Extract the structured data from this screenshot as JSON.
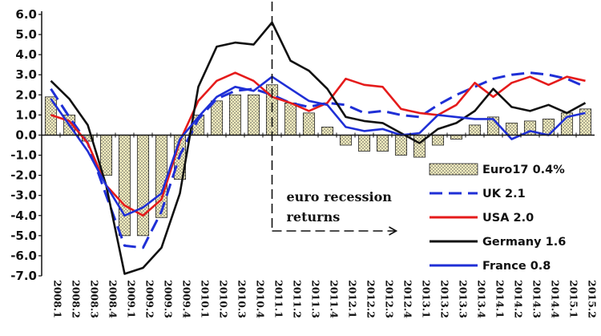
{
  "chart_data": {
    "type": "bar+line",
    "title": "",
    "xlabel": "",
    "ylabel": "",
    "ylim": [
      -7.0,
      6.0
    ],
    "yticks": [
      "6.0",
      "5.0",
      "4.0",
      "3.0",
      "2.0",
      "1.0",
      "0.0",
      "-1.0",
      "-2.0",
      "-3.0",
      "-4.0",
      "-5.0",
      "-6.0",
      "-7.0"
    ],
    "ytick_values": [
      6,
      5,
      4,
      3,
      2,
      1,
      0,
      -1,
      -2,
      -3,
      -4,
      -5,
      -6,
      -7
    ],
    "categories": [
      "2008.1",
      "2008.2",
      "2008.3",
      "2008.4",
      "2009.1",
      "2009.2",
      "2009.3",
      "2009.4",
      "2010.1",
      "2010.2",
      "2010.3",
      "2010.4",
      "2011.1",
      "2011.2",
      "2011.3",
      "2011.4",
      "2012.1",
      "2012.2",
      "2012.3",
      "2012.4",
      "2013.1",
      "2013.2",
      "2013.3",
      "2013.4",
      "2014.1",
      "2014.2",
      "2014.3",
      "2014.4",
      "2015.1",
      "2015.2"
    ],
    "x_tick_labels": [
      "2008.1",
      "2008.2",
      "2008.3",
      "2008.4",
      "2009.1",
      "2009.2",
      "2009.3",
      "2009.4",
      "2010.1",
      "2010.2",
      "2010.3",
      "2010.4",
      "2011.1",
      "2011.2",
      "2011.3",
      "2011.4",
      "2012.1",
      "2012.2",
      "2012.3",
      "2012.4",
      "2013.1",
      "2013.2",
      "2013.3",
      "2013.4",
      "2014.1",
      "2014.2",
      "2014.3",
      "2014.4",
      "2015.1",
      "2015.2"
    ],
    "bars": {
      "name": "Euro17  0.4%",
      "color": "#f3eec0",
      "values": [
        1.9,
        1.0,
        -0.3,
        -2.0,
        -5.0,
        -5.0,
        -4.1,
        -2.2,
        1.0,
        1.7,
        2.0,
        2.0,
        2.5,
        1.6,
        1.1,
        0.4,
        -0.5,
        -0.8,
        -0.8,
        -1.0,
        -1.1,
        -0.5,
        -0.2,
        0.5,
        0.9,
        0.6,
        0.7,
        0.8,
        1.1,
        1.3
      ]
    },
    "series": [
      {
        "name": "UK 2.1",
        "color": "#1f2fd6",
        "dashed": true,
        "values": [
          2.3,
          0.9,
          -0.4,
          -3.0,
          -5.5,
          -5.6,
          -3.8,
          -1.0,
          0.8,
          1.8,
          2.2,
          2.3,
          2.0,
          1.6,
          1.4,
          1.6,
          1.5,
          1.1,
          1.2,
          1.0,
          0.9,
          1.5,
          2.0,
          2.4,
          2.8,
          3.0,
          3.1,
          3.0,
          2.8,
          2.4
        ]
      },
      {
        "name": "USA 2.0",
        "color": "#e51b1b",
        "dashed": false,
        "values": [
          1.0,
          0.7,
          -0.4,
          -2.5,
          -3.5,
          -4.0,
          -3.2,
          -0.3,
          1.7,
          2.7,
          3.1,
          2.7,
          1.9,
          1.6,
          1.2,
          1.6,
          2.8,
          2.5,
          2.4,
          1.3,
          1.1,
          1.0,
          1.5,
          2.6,
          1.9,
          2.6,
          2.9,
          2.5,
          2.9,
          2.7
        ]
      },
      {
        "name": "Germany 1.6",
        "color": "#111111",
        "dashed": false,
        "values": [
          2.7,
          1.8,
          0.5,
          -2.5,
          -6.9,
          -6.6,
          -5.6,
          -2.9,
          2.4,
          4.4,
          4.6,
          4.5,
          5.6,
          3.7,
          3.2,
          2.3,
          0.9,
          0.7,
          0.6,
          0.1,
          -0.4,
          0.3,
          0.6,
          1.2,
          2.3,
          1.4,
          1.2,
          1.5,
          1.1,
          1.6
        ]
      },
      {
        "name": "France 0.8",
        "color": "#1f2fd6",
        "dashed": false,
        "values": [
          1.8,
          0.5,
          -0.8,
          -2.5,
          -4.0,
          -3.6,
          -2.9,
          -0.2,
          0.9,
          1.9,
          2.4,
          2.2,
          2.9,
          2.3,
          1.7,
          1.5,
          0.4,
          0.2,
          0.3,
          0.0,
          0.1,
          1.0,
          0.9,
          0.8,
          0.8,
          -0.2,
          0.2,
          0.0,
          0.9,
          1.1
        ]
      }
    ],
    "reference_line": {
      "at_category": "2011.1"
    },
    "annotation": {
      "line1": "euro recession",
      "line2": "returns"
    },
    "legend": {
      "position": "lower-right",
      "items": [
        {
          "label": "Euro17  0.4%",
          "kind": "bar",
          "color": "#f3eec0"
        },
        {
          "label": "UK 2.1",
          "kind": "dashed",
          "color": "#1f2fd6"
        },
        {
          "label": "USA 2.0",
          "kind": "line",
          "color": "#e51b1b"
        },
        {
          "label": "Germany 1.6",
          "kind": "line",
          "color": "#111111"
        },
        {
          "label": "France 0.8",
          "kind": "line",
          "color": "#1f2fd6"
        }
      ]
    }
  }
}
